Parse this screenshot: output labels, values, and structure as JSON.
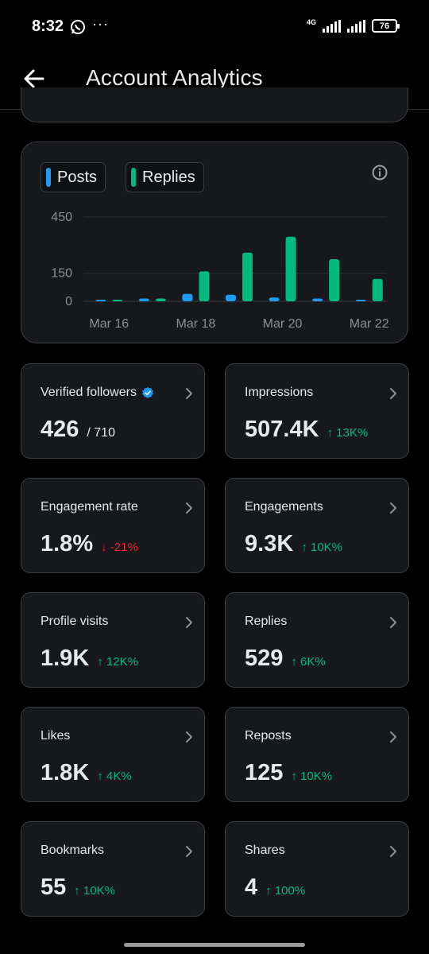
{
  "status": {
    "time": "8:32",
    "dots": "···",
    "network": "4G",
    "battery": "76"
  },
  "header": {
    "title": "Account Analytics"
  },
  "chart": {
    "legend": [
      {
        "label": "Posts",
        "color": "#1d9bf0"
      },
      {
        "label": "Replies",
        "color": "#00ba7c"
      }
    ]
  },
  "chart_data": {
    "type": "bar",
    "categories": [
      "Mar 16",
      "Mar 17",
      "Mar 18",
      "Mar 19",
      "Mar 20",
      "Mar 21",
      "Mar 22"
    ],
    "x_tick_labels": [
      "Mar 16",
      "Mar 18",
      "Mar 20",
      "Mar 22"
    ],
    "y_ticks": [
      0,
      150,
      450
    ],
    "ylim": [
      0,
      470
    ],
    "series": [
      {
        "name": "Posts",
        "color": "#1d9bf0",
        "values": [
          3,
          15,
          40,
          35,
          20,
          15,
          3
        ]
      },
      {
        "name": "Replies",
        "color": "#00ba7c",
        "values": [
          5,
          15,
          160,
          260,
          345,
          225,
          120
        ]
      }
    ],
    "grid": true,
    "legend_position": "top-left"
  },
  "metrics": [
    {
      "label": "Verified followers",
      "value": "426",
      "sub": "/ 710",
      "change": "",
      "direction": "",
      "verified": true
    },
    {
      "label": "Impressions",
      "value": "507.4K",
      "sub": "",
      "change": "↑ 13K%",
      "direction": "up"
    },
    {
      "label": "Engagement rate",
      "value": "1.8%",
      "sub": "",
      "change": "↓ -21%",
      "direction": "down"
    },
    {
      "label": "Engagements",
      "value": "9.3K",
      "sub": "",
      "change": "↑ 10K%",
      "direction": "up"
    },
    {
      "label": "Profile visits",
      "value": "1.9K",
      "sub": "",
      "change": "↑ 12K%",
      "direction": "up"
    },
    {
      "label": "Replies",
      "value": "529",
      "sub": "",
      "change": "↑ 6K%",
      "direction": "up"
    },
    {
      "label": "Likes",
      "value": "1.8K",
      "sub": "",
      "change": "↑ 4K%",
      "direction": "up"
    },
    {
      "label": "Reposts",
      "value": "125",
      "sub": "",
      "change": "↑ 10K%",
      "direction": "up"
    },
    {
      "label": "Bookmarks",
      "value": "55",
      "sub": "",
      "change": "↑ 10K%",
      "direction": "up"
    },
    {
      "label": "Shares",
      "value": "4",
      "sub": "",
      "change": "↑ 100%",
      "direction": "up"
    }
  ]
}
